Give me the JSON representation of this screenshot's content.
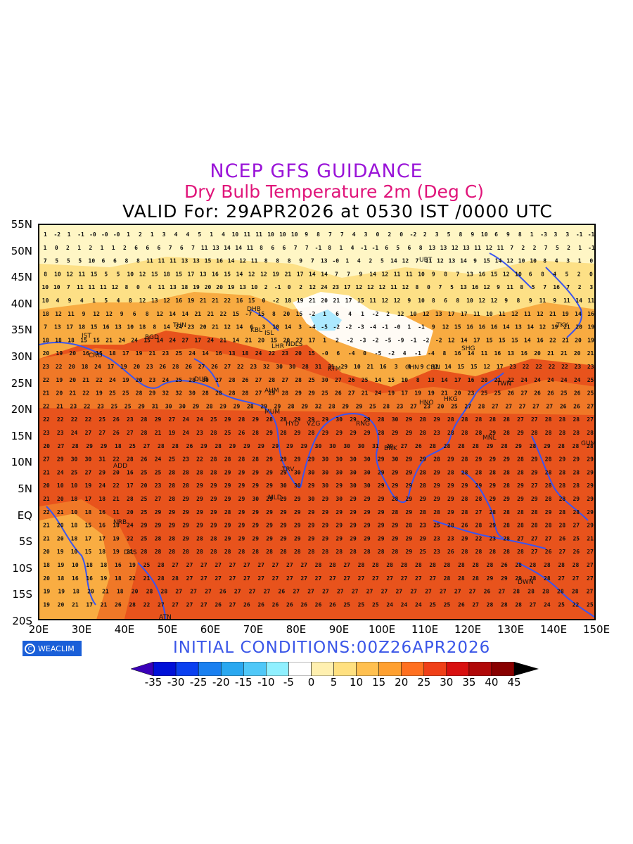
{
  "titles": {
    "line1": "NCEP GFS GUIDANCE",
    "line2": "Dry Bulb Temperature 2m (Deg C)",
    "line3": "VALID For: 29APR2026 at 0530 IST /0000 UTC"
  },
  "footer": {
    "logo_text": "WEACLIM",
    "initial_conditions": "INITIAL CONDITIONS:00Z26APR2026"
  },
  "axes": {
    "lat_labels": [
      "55N",
      "50N",
      "45N",
      "40N",
      "35N",
      "30N",
      "25N",
      "20N",
      "15N",
      "10N",
      "5N",
      "EQ",
      "5S",
      "10S",
      "15S",
      "20S"
    ],
    "lon_labels": [
      "20E",
      "30E",
      "40E",
      "50E",
      "60E",
      "70E",
      "80E",
      "90E",
      "100E",
      "110E",
      "120E",
      "130E",
      "140E",
      "150E"
    ]
  },
  "colorbar": {
    "labels": [
      "-35",
      "-30",
      "-25",
      "-20",
      "-15",
      "-10",
      "-5",
      "0",
      "5",
      "10",
      "15",
      "20",
      "25",
      "30",
      "35",
      "40",
      "45"
    ],
    "colors": [
      "#3a00b8",
      "#0010d8",
      "#0a40f0",
      "#1a80f0",
      "#2aa8f0",
      "#50c8f8",
      "#90f0ff",
      "#ffffff",
      "#fff0b0",
      "#ffe080",
      "#ffc050",
      "#ffa030",
      "#ff7020",
      "#f04018",
      "#d81010",
      "#b00808",
      "#880000"
    ],
    "arrow_color": "#000000"
  },
  "field_colors": {
    "hot": "#e8531c",
    "warm": "#f07a28",
    "mild": "#f9b043",
    "cool": "#fde38a",
    "cold": "#fff7c8",
    "snow": "#ffffff",
    "ice": "#a8e8ff",
    "coast": "#3a55f0"
  },
  "stations": [
    "UBT",
    "THN",
    "BGD",
    "DHB",
    "KBL",
    "ISL",
    "LHR",
    "NDLS",
    "KTM",
    "CHN",
    "SHG",
    "TKY",
    "DUB",
    "AHM",
    "MUM",
    "HYD",
    "VZG",
    "RNG",
    "BNK",
    "HNO",
    "HKG",
    "TWN",
    "MNL",
    "GUM",
    "CHN",
    "MLD",
    "TRV",
    "ADD",
    "NRB",
    "DAS",
    "ATN",
    "DWN",
    "IST",
    "CRO"
  ],
  "grid_rows": [
    "1 -2 1 -1 -0 -0 -0 1 2 1 3 4 4 5 1 4 10 11 11 10 10 10 9 8 7 7 4 3 0 2 0 -2 2 3 5 8 9 10 6 9 8 1 -3 3 3 -1 -1",
    "1 0 2 1 2 1 1 2 6 6 6 7 6 7 11 13 14 14 11 8 6 6 7 7 -1 8 1 4 -1 -1 6 5 6 8 13 13 12 13 11 12 11 7 2 2 7 5 2 1 -1",
    "7 5 5 5 10 6 6 8 8 11 11 11 13 13 15 16 14 12 11 8 8 8 9 7 13 -0 1 4 2 5 14 12 7 11 12 13 14 9 15 14 12 10 10 8 4 3 1 0",
    "8 10 12 11 15 5 5 10 12 15 18 15 17 13 16 15 14 12 12 19 21 17 14 14 7 7 9 14 12 11 11 10 9 8 7 13 16 15 12 10 6 8 4 5 2 0",
    "10 10 7 11 11 11 12 8 0 4 11 13 18 19 20 20 19 13 10 2 -1 0 2 12 24 23 17 12 12 12 11 12 8 0 7 5 13 16 12 9 11 8 5 7 16 7 2 3",
    "10 4 9 4 1 5 4 8 12 13 12 16 19 21 21 22 16 15 0 -2 18 19 21 20 21 17 15 11 12 12 9 10 8 6 8 10 12 12 9 8 9 11 9 11 14 11",
    "18 12 11 9 12 12 9 6 8 12 14 14 21 21 22 15 -7 15 8 20 15 -2 1 6 4 1 -2 2 12 10 12 13 17 17 11 10 11 12 11 12 21 19 14 16",
    "7 13 17 18 15 16 13 10 18 8 14 24 23 20 21 12 14 6 3 10 14 3 -4 -5 -2 -2 -3 -4 -1 -0 1 -1 9 12 15 16 16 16 14 13 14 12 19 21 20 19",
    "18 18 18 15 15 21 24 24 15 14 24 27 17 24 21 14 21 20 15 20 27 17 1 2 -2 -3 -2 -5 -9 -1 -2 -2 12 14 17 15 15 15 14 16 22 21 20 19",
    "20 19 20 16 15 18 17 19 21 23 25 24 14 16 13 18 24 22 23 20 15 -0 6 -4 0 -5 -2 4 -1 -4 8 16 14 11 16 13 16 20 21 21 20 21",
    "23 22 20 18 24 17 19 20 23 26 28 26 27 26 27 22 23 32 30 30 28 31 31 29 10 21 16 3 4 9 12 14 15 15 12 17 23 22 22 22 22 23 23",
    "22 19 20 21 22 24 19 20 23 24 25 28 30 27 28 26 27 28 27 28 25 30 27 26 25 14 15 10 8 13 14 17 16 20 21 22 24 24 24 24 24 25",
    "21 20 21 22 19 25 25 28 29 32 32 30 28 28 28 28 27 29 28 29 29 25 26 27 21 24 19 17 19 19 21 20 23 25 25 26 27 26 26 25 26 25",
    "22 21 23 22 23 25 25 29 31 30 30 29 28 29 29 28 29 29 28 29 32 28 29 29 25 28 23 27 23 20 25 27 28 27 27 27 27 27 26 26 27",
    "22 22 22 22 25 26 23 28 29 27 24 24 25 29 28 29 28 28 29 29 29 30 29 29 28 30 29 28 29 28 28 28 28 28 27 27 28 28 28 27",
    "23 23 24 27 27 26 27 28 21 19 24 23 28 25 26 28 29 28 29 28 29 29 29 29 28 29 29 28 23 28 28 28 29 28 29 28 28 28 28 28",
    "20 27 28 29 29 18 25 27 28 28 26 29 28 29 29 29 29 29 29 30 30 30 30 31 29 27 26 28 28 28 28 29 28 29 28 29 28 28 28",
    "27 29 30 30 31 22 28 26 24 25 23 22 28 28 28 28 29 29 29 29 30 30 30 30 29 30 29 29 28 29 28 29 29 29 28 29 28 29 29 29",
    "21 24 25 27 29 20 16 25 25 28 28 28 28 29 29 29 29 29 30 30 30 30 30 30 29 29 29 28 29 28 28 28 28 28 28 29 28 28 28 29",
    "20 10 10 19 24 22 17 20 23 28 28 29 29 29 29 29 29 30 30 29 30 29 30 30 29 29 29 28 29 29 29 29 29 28 29 27 28 28 28 29",
    "21 20 18 17 18 21 28 25 27 28 29 29 29 29 29 30 29 29 29 30 29 30 29 29 29 28 29 29 29 29 28 28 29 29 29 29 28 28 29 29",
    "22 21 10 18 16 11 20 25 29 29 29 29 29 28 29 29 29 29 29 29 29 29 29 29 29 28 29 28 28 29 28 27 28 28 28 28 29 28 28 29",
    "21 20 18 15 16 18 24 29 29 29 29 29 29 29 29 29 29 29 29 29 29 29 29 29 29 29 28 23 25 28 26 28 29 28 28 28 28 28 27 29",
    "21 20 18 17 17 19 22 25 28 28 29 28 28 29 29 29 29 29 29 29 29 29 29 29 29 29 29 29 23 23 29 22 23 28 27 27 27 26 25 21",
    "20 19 10 15 18 19 21 28 28 28 28 28 28 28 28 28 28 28 28 28 28 28 28 28 28 28 29 25 23 26 28 28 28 28 28 27 26 27 26 27",
    "18 19 10 18 18 16 19 25 28 27 27 27 27 27 27 27 27 27 27 28 28 27 28 28 28 28 28 28 28 28 28 28 26 28 28 28 28 28 27",
    "20 18 16 16 19 18 22 21 28 28 27 27 27 27 27 27 27 27 27 27 27 27 27 27 27 27 27 27 28 28 28 29 29 29 28 28 27 27 27",
    "19 19 18 20 21 18 20 28 28 27 27 27 26 27 27 27 26 27 27 27 27 27 27 27 27 27 27 27 27 27 26 27 28 28 28 28 28 27",
    "19 20 21 17 21 26 28 22 27 27 27 27 26 27 26 26 26 26 26 26 26 25 25 25 24 24 24 25 25 26 27 28 28 28 27 24 25 22 25"
  ]
}
